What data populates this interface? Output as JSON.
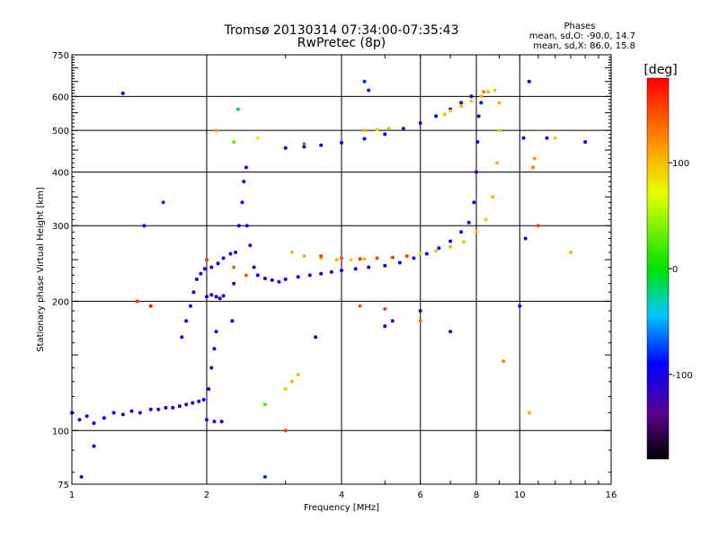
{
  "chart_data": {
    "type": "scatter",
    "title": "Tromsø 20130314 07:34:00-07:35:43",
    "subtitle": "RwPretec (8p)",
    "stats": {
      "heading": "Phases",
      "line1": "mean, sd,O:  -90.0, 14.7",
      "line2": "mean, sd,X:  86.0, 15.8"
    },
    "xlabel": "Frequency [MHz]",
    "ylabel": "Stationary phase Virtual Height [km]",
    "x_scale": "log",
    "y_scale": "log",
    "xlim": [
      1,
      16
    ],
    "ylim": [
      75,
      750
    ],
    "grid": true,
    "x_ticks": [
      {
        "value": 1,
        "label": "1"
      },
      {
        "value": 2,
        "label": "2"
      },
      {
        "value": 4,
        "label": "4"
      },
      {
        "value": 6,
        "label": "6"
      },
      {
        "value": 8,
        "label": "8"
      },
      {
        "value": 10,
        "label": "10"
      },
      {
        "value": 16,
        "label": "16"
      }
    ],
    "y_ticks": [
      {
        "value": 75,
        "label": "75"
      },
      {
        "value": 100,
        "label": "100"
      },
      {
        "value": 200,
        "label": "200"
      },
      {
        "value": 300,
        "label": "300"
      },
      {
        "value": 400,
        "label": "400"
      },
      {
        "value": 500,
        "label": "500"
      },
      {
        "value": 600,
        "label": "600"
      },
      {
        "value": 750,
        "label": "750"
      }
    ],
    "colorbar": {
      "label": "[deg]",
      "range": [
        -180,
        180
      ],
      "ticks": [
        {
          "value": 100,
          "label": "100"
        },
        {
          "value": 0,
          "label": "0"
        },
        {
          "value": -100,
          "label": "-100"
        }
      ]
    },
    "series": [
      {
        "points": [
          [
            1.0,
            110,
            -105
          ],
          [
            1.04,
            106,
            -110
          ],
          [
            1.08,
            108,
            -100
          ],
          [
            1.12,
            104,
            -115
          ],
          [
            1.18,
            107,
            -108
          ],
          [
            1.24,
            110,
            -102
          ],
          [
            1.3,
            109,
            -110
          ],
          [
            1.36,
            111,
            -104
          ],
          [
            1.42,
            110,
            -110
          ],
          [
            1.5,
            112,
            -100
          ],
          [
            1.56,
            112,
            -108
          ],
          [
            1.62,
            113,
            -104
          ],
          [
            1.68,
            113,
            -110
          ],
          [
            1.74,
            114,
            -100
          ],
          [
            1.8,
            115,
            -106
          ],
          [
            1.86,
            116,
            -102
          ],
          [
            1.92,
            117,
            -108
          ],
          [
            1.97,
            118,
            -100
          ],
          [
            2.0,
            106,
            -110
          ],
          [
            2.08,
            105,
            -104
          ],
          [
            2.16,
            105,
            -110
          ],
          [
            2.02,
            125,
            -100
          ],
          [
            2.05,
            140,
            -106
          ],
          [
            2.08,
            155,
            -104
          ],
          [
            2.1,
            170,
            -110
          ],
          [
            2.0,
            205,
            -100
          ],
          [
            2.05,
            207,
            -106
          ],
          [
            2.1,
            205,
            -112
          ],
          [
            2.14,
            203,
            -104
          ],
          [
            2.18,
            206,
            -108
          ],
          [
            1.76,
            165,
            -100
          ],
          [
            1.8,
            180,
            -106
          ],
          [
            1.84,
            195,
            -110
          ],
          [
            1.87,
            210,
            -104
          ],
          [
            1.9,
            225,
            -100
          ],
          [
            1.94,
            232,
            -106
          ],
          [
            1.98,
            238,
            -110
          ],
          [
            2.05,
            240,
            -104
          ],
          [
            2.12,
            245,
            -100
          ],
          [
            2.18,
            252,
            -106
          ],
          [
            2.26,
            258,
            -110
          ],
          [
            2.28,
            180,
            -102
          ],
          [
            2.3,
            220,
            -104
          ],
          [
            2.32,
            260,
            -108
          ],
          [
            2.36,
            300,
            -100
          ],
          [
            2.4,
            340,
            -106
          ],
          [
            2.42,
            380,
            -110
          ],
          [
            2.45,
            410,
            -104
          ],
          [
            2.46,
            300,
            -100
          ],
          [
            2.5,
            270,
            -106
          ],
          [
            2.55,
            240,
            -110
          ],
          [
            2.6,
            230,
            -104
          ],
          [
            2.7,
            226,
            -100
          ],
          [
            2.8,
            224,
            -106
          ],
          [
            2.9,
            222,
            -110
          ],
          [
            3.0,
            225,
            -104
          ],
          [
            3.2,
            228,
            -100
          ],
          [
            3.4,
            230,
            -106
          ],
          [
            3.6,
            232,
            -110
          ],
          [
            3.8,
            234,
            -104
          ],
          [
            4.0,
            236,
            -100
          ],
          [
            4.3,
            238,
            -106
          ],
          [
            4.6,
            240,
            -110
          ],
          [
            5.0,
            242,
            -104
          ],
          [
            5.4,
            246,
            -100
          ],
          [
            5.8,
            252,
            -106
          ],
          [
            6.2,
            258,
            -110
          ],
          [
            6.6,
            266,
            -104
          ],
          [
            7.0,
            276,
            -100
          ],
          [
            7.4,
            290,
            -106
          ],
          [
            7.7,
            305,
            -110
          ],
          [
            7.9,
            340,
            -104
          ],
          [
            8.0,
            400,
            -100
          ],
          [
            8.05,
            470,
            -106
          ],
          [
            8.1,
            540,
            -110
          ],
          [
            8.2,
            580,
            -104
          ],
          [
            3.0,
            455,
            -100
          ],
          [
            3.3,
            458,
            -106
          ],
          [
            3.6,
            462,
            -110
          ],
          [
            4.0,
            468,
            -104
          ],
          [
            4.5,
            478,
            -100
          ],
          [
            5.0,
            490,
            -106
          ],
          [
            5.5,
            505,
            -110
          ],
          [
            6.0,
            520,
            -104
          ],
          [
            6.5,
            540,
            -100
          ],
          [
            7.0,
            560,
            -106
          ],
          [
            7.4,
            580,
            -110
          ],
          [
            7.8,
            600,
            -104
          ]
        ]
      },
      {
        "points": [
          [
            3.1,
            260,
            95
          ],
          [
            3.3,
            255,
            100
          ],
          [
            3.6,
            252,
            92
          ],
          [
            3.9,
            250,
            98
          ],
          [
            4.2,
            250,
            90
          ],
          [
            4.5,
            251,
            96
          ],
          [
            4.8,
            252,
            100
          ],
          [
            5.2,
            253,
            92
          ],
          [
            5.6,
            255,
            98
          ],
          [
            6.0,
            258,
            90
          ],
          [
            6.5,
            262,
            96
          ],
          [
            7.0,
            268,
            100
          ],
          [
            7.5,
            275,
            92
          ],
          [
            8.0,
            290,
            98
          ],
          [
            8.4,
            310,
            90
          ],
          [
            8.7,
            350,
            96
          ],
          [
            8.9,
            420,
            100
          ],
          [
            9.0,
            500,
            92
          ],
          [
            9.0,
            580,
            98
          ],
          [
            8.8,
            620,
            90
          ],
          [
            8.5,
            615,
            96
          ],
          [
            8.2,
            600,
            100
          ],
          [
            7.8,
            585,
            92
          ],
          [
            7.4,
            570,
            98
          ],
          [
            7.0,
            555,
            90
          ],
          [
            6.8,
            545,
            96
          ],
          [
            4.5,
            500,
            100
          ],
          [
            4.8,
            502,
            92
          ],
          [
            5.1,
            505,
            98
          ],
          [
            3.0,
            125,
            95
          ],
          [
            3.1,
            130,
            100
          ],
          [
            3.2,
            135,
            92
          ]
        ]
      },
      {
        "points": [
          [
            3.6,
            255,
            150
          ],
          [
            4.0,
            252,
            145
          ],
          [
            4.4,
            251,
            155
          ],
          [
            4.8,
            252,
            148
          ],
          [
            5.2,
            253,
            152
          ],
          [
            5.6,
            255,
            146
          ],
          [
            2.3,
            240,
            135
          ],
          [
            2.45,
            230,
            140
          ],
          [
            8.3,
            615,
            120
          ]
        ]
      },
      {
        "points": [
          [
            1.3,
            610,
            -100
          ],
          [
            1.45,
            300,
            -110
          ],
          [
            1.6,
            340,
            -90
          ],
          [
            1.12,
            92,
            -100
          ],
          [
            1.05,
            78,
            -120
          ],
          [
            2.7,
            78,
            -90
          ],
          [
            3.5,
            165,
            -100
          ],
          [
            5.0,
            175,
            -110
          ],
          [
            5.2,
            180,
            -120
          ],
          [
            6.0,
            190,
            -100
          ],
          [
            7.0,
            170,
            -110
          ],
          [
            10.0,
            195,
            -95
          ],
          [
            10.2,
            480,
            -100
          ],
          [
            10.3,
            280,
            -110
          ],
          [
            11.5,
            480,
            -120
          ],
          [
            14.0,
            470,
            -100
          ],
          [
            4.6,
            620,
            -110
          ],
          [
            4.5,
            650,
            -90
          ],
          [
            10.5,
            650,
            -100
          ]
        ]
      },
      {
        "points": [
          [
            1.4,
            200,
            160
          ],
          [
            2.1,
            500,
            110
          ],
          [
            2.3,
            470,
            30
          ],
          [
            2.6,
            480,
            60
          ],
          [
            3.3,
            465,
            150
          ],
          [
            4.4,
            195,
            140
          ],
          [
            5.0,
            192,
            150
          ],
          [
            6.0,
            180,
            130
          ],
          [
            10.7,
            410,
            120
          ],
          [
            10.8,
            430,
            110
          ],
          [
            11.0,
            300,
            150
          ],
          [
            13.0,
            260,
            100
          ],
          [
            12.0,
            480,
            90
          ],
          [
            10.5,
            110,
            100
          ],
          [
            2.7,
            115,
            20
          ],
          [
            3.0,
            100,
            150
          ],
          [
            1.5,
            195,
            170
          ],
          [
            2.0,
            250,
            150
          ],
          [
            9.2,
            145,
            120
          ],
          [
            2.35,
            560,
            -20
          ]
        ]
      }
    ]
  }
}
